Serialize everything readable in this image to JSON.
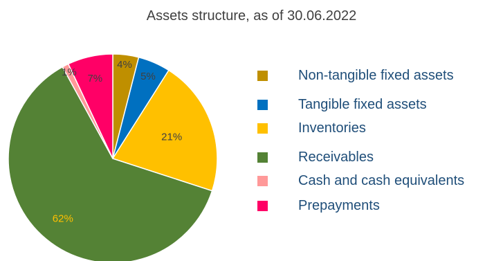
{
  "chart_data": {
    "type": "pie",
    "title": "Assets structure, as of 30.06.2022",
    "start_angle_deg": 0,
    "direction": "clockwise",
    "legend_position": "right",
    "slices": [
      {
        "label": "Non-tangible fixed assets",
        "value": 4,
        "display": "4%",
        "color": "#bf8f00",
        "label_color": "#404040"
      },
      {
        "label": "Tangible fixed assets",
        "value": 5,
        "display": "5%",
        "color": "#0070c0",
        "label_color": "#404040"
      },
      {
        "label": "Inventories",
        "value": 21,
        "display": "21%",
        "color": "#ffc000",
        "label_color": "#404040"
      },
      {
        "label": "Receivables",
        "value": 62,
        "display": "62%",
        "color": "#548235",
        "label_color": "#ffc000"
      },
      {
        "label": "Cash and cash equivalents",
        "value": 1,
        "display": "1%",
        "color": "#ff9999",
        "label_color": "#404040"
      },
      {
        "label": "Prepayments",
        "value": 7,
        "display": "7%",
        "color": "#ff0066",
        "label_color": "#404040"
      }
    ]
  }
}
